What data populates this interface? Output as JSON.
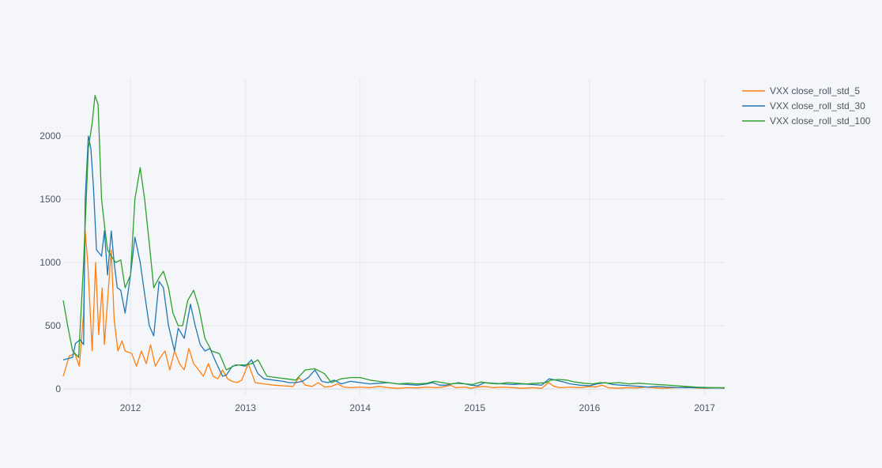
{
  "chart_data": {
    "type": "line",
    "title": "",
    "xlabel": "",
    "ylabel": "",
    "xlim": [
      "2011-06-01",
      "2017-03-06"
    ],
    "ylim": [
      -50,
      2450
    ],
    "x_ticks": [
      "2012",
      "2013",
      "2014",
      "2015",
      "2016",
      "2017"
    ],
    "y_ticks": [
      "0",
      "500",
      "1000",
      "1500",
      "2000"
    ],
    "grid": true,
    "legend_placement": "top-right",
    "series": [
      {
        "name": "VXX close_roll_std_5",
        "color": "#ff7f0e",
        "x": [
          "2011-06-01",
          "2011-06-20",
          "2011-07-08",
          "2011-07-22",
          "2011-08-05",
          "2011-08-10",
          "2011-08-18",
          "2011-09-01",
          "2011-09-12",
          "2011-09-22",
          "2011-10-03",
          "2011-10-10",
          "2011-10-20",
          "2011-11-01",
          "2011-11-10",
          "2011-11-22",
          "2011-12-05",
          "2011-12-15",
          "2012-01-05",
          "2012-01-20",
          "2012-02-05",
          "2012-02-20",
          "2012-03-05",
          "2012-03-20",
          "2012-04-05",
          "2012-04-20",
          "2012-05-05",
          "2012-05-20",
          "2012-06-05",
          "2012-06-20",
          "2012-07-05",
          "2012-07-20",
          "2012-08-05",
          "2012-08-20",
          "2012-09-05",
          "2012-09-20",
          "2012-10-05",
          "2012-10-20",
          "2012-11-05",
          "2012-11-20",
          "2012-12-05",
          "2012-12-20",
          "2013-01-10",
          "2013-02-01",
          "2013-03-01",
          "2013-04-01",
          "2013-05-01",
          "2013-06-01",
          "2013-06-20",
          "2013-07-10",
          "2013-08-01",
          "2013-08-20",
          "2013-09-10",
          "2013-10-01",
          "2013-10-20",
          "2013-11-10",
          "2013-12-01",
          "2014-01-01",
          "2014-02-01",
          "2014-03-01",
          "2014-04-01",
          "2014-05-01",
          "2014-06-01",
          "2014-07-01",
          "2014-08-01",
          "2014-09-01",
          "2014-10-01",
          "2014-10-15",
          "2014-11-01",
          "2014-12-01",
          "2014-12-20",
          "2015-01-05",
          "2015-02-01",
          "2015-03-01",
          "2015-04-01",
          "2015-05-01",
          "2015-06-01",
          "2015-07-01",
          "2015-08-01",
          "2015-08-24",
          "2015-09-10",
          "2015-10-01",
          "2015-11-01",
          "2015-12-01",
          "2016-01-01",
          "2016-01-20",
          "2016-02-10",
          "2016-03-01",
          "2016-04-01",
          "2016-05-01",
          "2016-06-01",
          "2016-06-27",
          "2016-07-20",
          "2016-08-20",
          "2016-10-01",
          "2016-11-08",
          "2016-12-01",
          "2017-01-01",
          "2017-02-01",
          "2017-03-06"
        ],
        "values": [
          100,
          260,
          280,
          180,
          600,
          1250,
          1000,
          300,
          1000,
          430,
          800,
          350,
          700,
          1100,
          550,
          300,
          380,
          300,
          280,
          180,
          300,
          200,
          350,
          180,
          250,
          300,
          150,
          300,
          200,
          150,
          320,
          200,
          150,
          100,
          200,
          100,
          80,
          150,
          80,
          60,
          50,
          70,
          200,
          50,
          40,
          30,
          25,
          20,
          90,
          30,
          20,
          50,
          15,
          20,
          40,
          15,
          10,
          15,
          10,
          20,
          10,
          5,
          10,
          8,
          15,
          10,
          20,
          30,
          10,
          15,
          5,
          15,
          20,
          10,
          15,
          10,
          5,
          10,
          5,
          50,
          20,
          10,
          15,
          10,
          20,
          15,
          30,
          10,
          5,
          10,
          8,
          15,
          10,
          5,
          10,
          15,
          8,
          5,
          10,
          5
        ]
      },
      {
        "name": "VXX close_roll_std_30",
        "color": "#1f77b4",
        "x": [
          "2011-06-01",
          "2011-07-01",
          "2011-07-10",
          "2011-07-25",
          "2011-08-05",
          "2011-08-10",
          "2011-08-20",
          "2011-08-28",
          "2011-09-05",
          "2011-09-15",
          "2011-10-01",
          "2011-10-10",
          "2011-10-20",
          "2011-11-01",
          "2011-11-10",
          "2011-11-20",
          "2011-12-01",
          "2011-12-15",
          "2012-01-01",
          "2012-01-15",
          "2012-02-01",
          "2012-02-15",
          "2012-03-01",
          "2012-03-15",
          "2012-04-01",
          "2012-04-15",
          "2012-05-01",
          "2012-05-20",
          "2012-06-01",
          "2012-06-20",
          "2012-07-10",
          "2012-07-25",
          "2012-08-10",
          "2012-08-25",
          "2012-09-10",
          "2012-10-01",
          "2012-10-20",
          "2012-11-01",
          "2012-11-20",
          "2012-12-10",
          "2013-01-01",
          "2013-01-20",
          "2013-02-10",
          "2013-03-01",
          "2013-04-01",
          "2013-05-01",
          "2013-05-20",
          "2013-06-10",
          "2013-07-01",
          "2013-07-20",
          "2013-08-10",
          "2013-09-01",
          "2013-09-20",
          "2013-10-10",
          "2013-11-01",
          "2013-12-01",
          "2014-01-01",
          "2014-02-01",
          "2014-03-01",
          "2014-04-01",
          "2014-05-01",
          "2014-06-01",
          "2014-07-01",
          "2014-08-01",
          "2014-08-20",
          "2014-09-10",
          "2014-10-01",
          "2014-10-20",
          "2014-11-10",
          "2014-12-01",
          "2014-12-20",
          "2015-01-10",
          "2015-02-01",
          "2015-03-01",
          "2015-04-01",
          "2015-05-01",
          "2015-06-01",
          "2015-07-01",
          "2015-08-01",
          "2015-08-25",
          "2015-09-15",
          "2015-10-10",
          "2015-11-01",
          "2015-12-01",
          "2016-01-01",
          "2016-01-25",
          "2016-02-20",
          "2016-03-15",
          "2016-04-10",
          "2016-05-10",
          "2016-06-10",
          "2016-07-05",
          "2016-08-01",
          "2016-09-01",
          "2016-10-01",
          "2016-11-01",
          "2016-12-01",
          "2017-01-01",
          "2017-02-01",
          "2017-03-06"
        ],
        "values": [
          230,
          250,
          360,
          390,
          350,
          1500,
          2000,
          1900,
          1600,
          1100,
          1050,
          1250,
          900,
          1250,
          1000,
          800,
          780,
          600,
          900,
          1200,
          1000,
          750,
          500,
          420,
          850,
          800,
          500,
          300,
          480,
          400,
          670,
          500,
          350,
          300,
          320,
          200,
          100,
          110,
          180,
          190,
          180,
          230,
          120,
          80,
          70,
          60,
          50,
          50,
          60,
          90,
          150,
          60,
          50,
          70,
          40,
          60,
          50,
          40,
          45,
          50,
          40,
          35,
          30,
          40,
          50,
          30,
          30,
          40,
          50,
          40,
          30,
          25,
          50,
          45,
          40,
          35,
          40,
          35,
          30,
          80,
          70,
          55,
          40,
          30,
          25,
          40,
          50,
          35,
          30,
          25,
          20,
          15,
          20,
          15,
          12,
          10,
          10,
          8,
          8,
          8
        ]
      },
      {
        "name": "VXX close_roll_std_100",
        "color": "#2ca02c",
        "x": [
          "2011-06-01",
          "2011-06-15",
          "2011-07-01",
          "2011-07-20",
          "2011-08-05",
          "2011-08-20",
          "2011-09-01",
          "2011-09-10",
          "2011-09-20",
          "2011-10-01",
          "2011-10-10",
          "2011-10-20",
          "2011-11-01",
          "2011-11-15",
          "2011-12-01",
          "2011-12-15",
          "2012-01-01",
          "2012-01-15",
          "2012-02-01",
          "2012-02-15",
          "2012-03-01",
          "2012-03-15",
          "2012-04-01",
          "2012-04-15",
          "2012-05-01",
          "2012-05-15",
          "2012-06-01",
          "2012-06-15",
          "2012-07-01",
          "2012-07-20",
          "2012-08-05",
          "2012-08-25",
          "2012-09-15",
          "2012-10-10",
          "2012-11-01",
          "2012-12-01",
          "2013-01-01",
          "2013-01-20",
          "2013-02-10",
          "2013-03-10",
          "2013-04-10",
          "2013-05-10",
          "2013-06-10",
          "2013-07-10",
          "2013-08-10",
          "2013-09-10",
          "2013-10-01",
          "2013-11-01",
          "2013-12-01",
          "2014-01-01",
          "2014-02-01",
          "2014-03-01",
          "2014-04-01",
          "2014-05-01",
          "2014-06-01",
          "2014-07-01",
          "2014-08-01",
          "2014-08-25",
          "2014-09-20",
          "2014-10-15",
          "2014-11-05",
          "2014-12-01",
          "2014-12-25",
          "2015-01-20",
          "2015-02-15",
          "2015-03-15",
          "2015-04-15",
          "2015-05-15",
          "2015-06-15",
          "2015-07-15",
          "2015-08-15",
          "2015-09-01",
          "2015-09-25",
          "2015-10-20",
          "2015-11-15",
          "2015-12-15",
          "2016-01-10",
          "2016-02-05",
          "2016-03-05",
          "2016-04-05",
          "2016-05-05",
          "2016-06-05",
          "2016-07-05",
          "2016-08-05",
          "2016-09-05",
          "2016-10-05",
          "2016-11-05",
          "2016-12-05",
          "2017-01-05",
          "2017-02-05",
          "2017-03-06"
        ],
        "values": [
          700,
          500,
          300,
          250,
          1000,
          1900,
          2100,
          2320,
          2250,
          1500,
          1300,
          1100,
          1050,
          1000,
          1020,
          800,
          900,
          1500,
          1750,
          1500,
          1150,
          800,
          880,
          930,
          800,
          600,
          500,
          500,
          700,
          780,
          650,
          400,
          300,
          280,
          150,
          190,
          190,
          200,
          230,
          100,
          90,
          80,
          70,
          150,
          160,
          120,
          50,
          80,
          90,
          90,
          70,
          60,
          50,
          40,
          45,
          40,
          45,
          60,
          50,
          40,
          45,
          40,
          35,
          55,
          45,
          40,
          50,
          45,
          40,
          45,
          50,
          70,
          75,
          70,
          55,
          45,
          40,
          50,
          45,
          50,
          40,
          45,
          40,
          35,
          30,
          25,
          20,
          15,
          12,
          10,
          10
        ]
      }
    ]
  }
}
